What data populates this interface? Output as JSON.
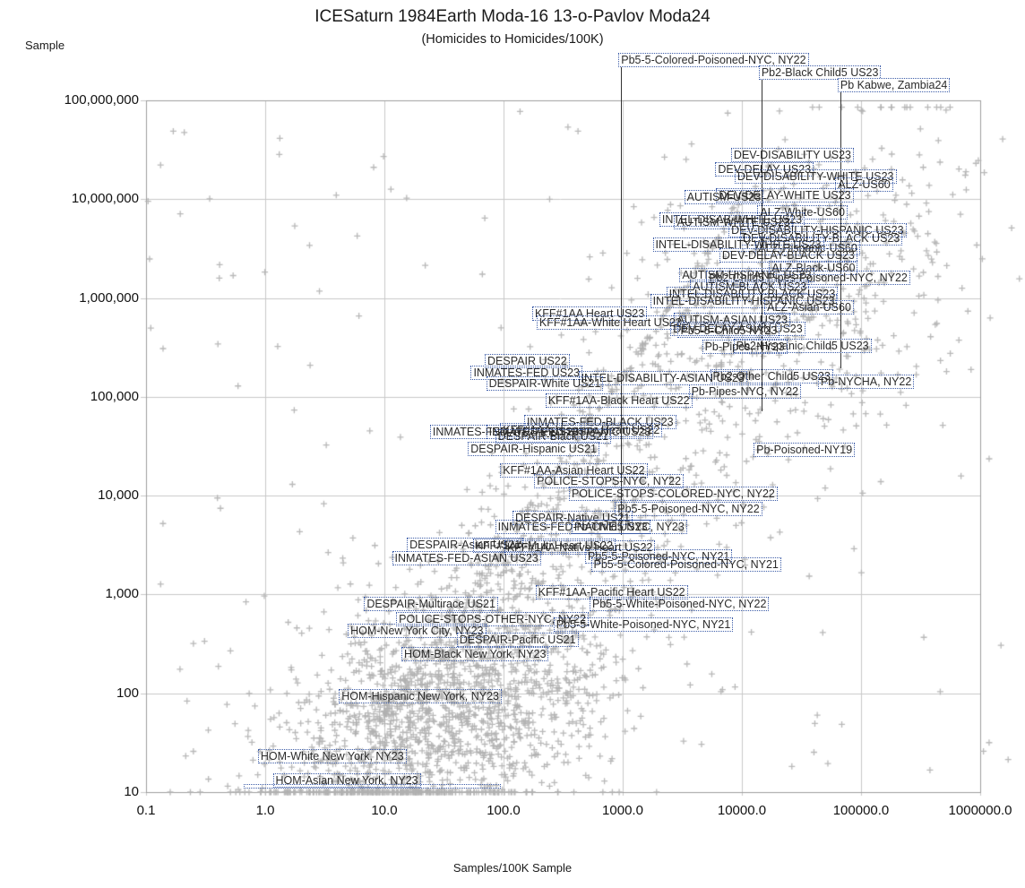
{
  "title": "ICESaturn 1984Earth Moda-16 13-o-Pavlov Moda24",
  "subtitle": "(Homicides to Homicides/100K)",
  "y_axis_label": "Sample",
  "x_axis_label": "Samples/100K Sample",
  "colors": {
    "marker": "#b0b0b0",
    "grid": "#c9c9c9",
    "axis_border": "#9e9e9e",
    "label_box_border": "#3d5da8",
    "label_text": "#2b2b2b",
    "leader_line": "#333333",
    "title_text": "#1a1a1a"
  },
  "chart_data": {
    "type": "scatter",
    "x_scale": "log",
    "y_scale": "log",
    "x_range": [
      0.1,
      1000000
    ],
    "y_range": [
      10,
      100000000
    ],
    "grid": true,
    "marker_glyph": "+",
    "x_ticks": [
      {
        "label": "0.1",
        "value": 0.1
      },
      {
        "label": "1.0",
        "value": 1
      },
      {
        "label": "10.0",
        "value": 10
      },
      {
        "label": "100.0",
        "value": 100
      },
      {
        "label": "1000.0",
        "value": 1000
      },
      {
        "label": "10000.0",
        "value": 10000
      },
      {
        "label": "100000.0",
        "value": 100000
      },
      {
        "label": "1000000.0",
        "value": 1000000
      }
    ],
    "y_ticks": [
      {
        "label": "10",
        "value": 10
      },
      {
        "label": "100",
        "value": 100
      },
      {
        "label": "1,000",
        "value": 1000
      },
      {
        "label": "10,000",
        "value": 10000
      },
      {
        "label": "100,000",
        "value": 100000
      },
      {
        "label": "1,000,000",
        "value": 1000000
      },
      {
        "label": "10,000,000",
        "value": 10000000
      },
      {
        "label": "100,000,000",
        "value": 100000000
      }
    ],
    "callouts": [
      {
        "label": "Pb5-5-Colored-Poisoned-NYC, NY22",
        "x": 970,
        "point_y": 4000,
        "row": 0
      },
      {
        "label": "Pb2-Black Child5 US23",
        "x": 14600,
        "point_y": 72000,
        "row": 1
      },
      {
        "label": "Pb Kabwe, Zambia24",
        "x": 67000,
        "point_y": 195000,
        "row": 2
      }
    ],
    "labeled_points": [
      {
        "label": "DEV-DISABILITY US23",
        "x": 8400,
        "y": 28000000
      },
      {
        "label": "DEV-DELAY US23",
        "x": 6200,
        "y": 20000000
      },
      {
        "label": "DEV-DISABILITY-WHITE US23",
        "x": 9000,
        "y": 17000000
      },
      {
        "label": "ALZ-US60",
        "x": 63000,
        "y": 14000000
      },
      {
        "label": "DEV-DELAY-WHITE US23",
        "x": 6300,
        "y": 11000000
      },
      {
        "label": "AUTISM-US23",
        "x": 3400,
        "y": 10500000
      },
      {
        "label": "ALZ-White-US60",
        "x": 14000,
        "y": 7400000
      },
      {
        "label": "INTEL-DISAB-WHITE US23",
        "x": 2100,
        "y": 6200000
      },
      {
        "label": "AUTISM-WHITE US23",
        "x": 2800,
        "y": 5900000
      },
      {
        "label": "DEV-DISABILITY-HISPANIC US23",
        "x": 8000,
        "y": 4800000
      },
      {
        "label": "DEV-DISABILITY-BLACK US23",
        "x": 10000,
        "y": 4000000
      },
      {
        "label": "INTEL-DISABILITY-WHITE US23",
        "x": 1850,
        "y": 3500000
      },
      {
        "label": "ALZ-Hispanic-US60",
        "x": 13500,
        "y": 3200000
      },
      {
        "label": "DEV-DELAY-BLACK US23",
        "x": 6700,
        "y": 2700000
      },
      {
        "label": "ALZ-Black-US60",
        "x": 17500,
        "y": 2000000
      },
      {
        "label": "AUTISM-HISPANIC US23",
        "x": 3100,
        "y": 1700000
      },
      {
        "label": "Pb2-Child5 Pipes-Poisoned-NYC, NY22",
        "x": 5200,
        "y": 1600000
      },
      {
        "label": "AUTISM-BLACK US23",
        "x": 3800,
        "y": 1300000
      },
      {
        "label": "INTEL-DISABILITY-BLACK US23",
        "x": 2400,
        "y": 1100000
      },
      {
        "label": "INTEL-DISABILITY-HISPANIC US23",
        "x": 1760,
        "y": 940000
      },
      {
        "label": "ALZ-Asian-US60",
        "x": 16000,
        "y": 800000
      },
      {
        "label": "KFF#1AA Heart US23",
        "x": 180,
        "y": 700000
      },
      {
        "label": "AUTISM-ASIAN US23",
        "x": 2800,
        "y": 600000
      },
      {
        "label": "KFF#1AA-White Heart US23",
        "x": 196,
        "y": 560000
      },
      {
        "label": "DEV-DELAY-ASIAN US23",
        "x": 2600,
        "y": 490000
      },
      {
        "label": "Pb5-5-Child5 NY23",
        "x": 3000,
        "y": 470000
      },
      {
        "label": "Pb2-Hispanic Child5 US23",
        "x": 8800,
        "y": 330000
      },
      {
        "label": "Pb-Pipes, NY23",
        "x": 4800,
        "y": 320000
      },
      {
        "label": "DESPAIR US22",
        "x": 72,
        "y": 230000
      },
      {
        "label": "INMATES-FED US23",
        "x": 55,
        "y": 176000
      },
      {
        "label": "Pb2-Other Child5 US23",
        "x": 5600,
        "y": 160000
      },
      {
        "label": "INTEL-DISABILITY-ASIAN US23",
        "x": 440,
        "y": 155000
      },
      {
        "label": "Pb-NYCHA, NY22",
        "x": 45000,
        "y": 143000
      },
      {
        "label": "DESPAIR-White US21",
        "x": 74,
        "y": 137000
      },
      {
        "label": "Pb-Pipes-NYC, NY22",
        "x": 3700,
        "y": 113000
      },
      {
        "label": "KFF#1AA-Black Heart US22",
        "x": 233,
        "y": 92000
      },
      {
        "label": "INMATES-FED-BLACK US23",
        "x": 154,
        "y": 56000
      },
      {
        "label": "KFF#1AA-Hispanic Heart US22",
        "x": 97,
        "y": 46000
      },
      {
        "label": "INMATES-FED-WHITE US23",
        "x": 25,
        "y": 44000
      },
      {
        "label": "INMATES-FED-HISPANIC US23",
        "x": 74,
        "y": 44000
      },
      {
        "label": "DESPAIR-Black US21",
        "x": 88,
        "y": 40000
      },
      {
        "label": "DESPAIR-Hispanic US21",
        "x": 52,
        "y": 30000
      },
      {
        "label": "Pb-Poisoned-NY19",
        "x": 13000,
        "y": 29000
      },
      {
        "label": "KFF#1AA-Asian Heart US22",
        "x": 97,
        "y": 18000
      },
      {
        "label": "POLICE-STOPS-NYC, NY22",
        "x": 187,
        "y": 14000
      },
      {
        "label": "POLICE-STOPS-COLORED-NYC, NY22",
        "x": 366,
        "y": 10500
      },
      {
        "label": "Pb5-5-Poisoned-NYC, NY22",
        "x": 890,
        "y": 7300
      },
      {
        "label": "DESPAIR-Native US21",
        "x": 123,
        "y": 5900
      },
      {
        "label": "INMATES-FED-NATIVE US23",
        "x": 88,
        "y": 4800
      },
      {
        "label": "Pb-Child5 NYC, NY23",
        "x": 385,
        "y": 4800
      },
      {
        "label": "DESPAIR-Asian US21",
        "x": 16,
        "y": 3200
      },
      {
        "label": "KFF#1AA-Multi Heart US22",
        "x": 57,
        "y": 3100
      },
      {
        "label": "KFF#1AA-Native Heart US22",
        "x": 105,
        "y": 3000
      },
      {
        "label": "INMATES-FED-ASIAN US23",
        "x": 12,
        "y": 2350
      },
      {
        "label": "Pb5-5-Poisoned-NYC, NY21",
        "x": 500,
        "y": 2450
      },
      {
        "label": "Pb5-5-Colored-Poisoned-NYC, NY21",
        "x": 560,
        "y": 2000
      },
      {
        "label": "KFF#1AA-Pacific Heart US22",
        "x": 192,
        "y": 1050
      },
      {
        "label": "DESPAIR-Multirace US21",
        "x": 7,
        "y": 800
      },
      {
        "label": "Pb5-5-White-Poisoned-NYC, NY22",
        "x": 545,
        "y": 800
      },
      {
        "label": "POLICE-STOPS-OTHER-NYC, NY22",
        "x": 13,
        "y": 560
      },
      {
        "label": "Pb5-5-White-Poisoned-NYC, NY21",
        "x": 272,
        "y": 500
      },
      {
        "label": "HOM-New York City, NY23",
        "x": 5.1,
        "y": 430
      },
      {
        "label": "DESPAIR-Pacific US21",
        "x": 42,
        "y": 350
      },
      {
        "label": "HOM-Black New York, NY23",
        "x": 14.4,
        "y": 250
      },
      {
        "label": "HOM-Hispanic New York, NY23",
        "x": 4.3,
        "y": 93
      },
      {
        "label": "HOM-White New York, NY23",
        "x": 0.9,
        "y": 23
      },
      {
        "label": "HOM-Asian New York, NY23",
        "x": 1.2,
        "y": 13
      }
    ],
    "empty_label_box": {
      "x1": 0.66,
      "x2": 92,
      "y": 11.6
    },
    "background_cloud": {
      "note": "approximate distribution of ~3100 unlabeled plus-markers, log10 space",
      "seed": 42,
      "components": [
        {
          "name": "dense-lower-blob",
          "n": 1500,
          "logx": {
            "dist": "normal",
            "mu": 1.45,
            "sigma": 0.7
          },
          "logy": {
            "dist": "normal",
            "mu": 1.75,
            "sigma": 0.65
          },
          "corr": 0.35
        },
        {
          "name": "broad-diagonal-band",
          "n": 850,
          "logx": {
            "dist": "normal",
            "mu": 2.7,
            "sigma": 1.15
          },
          "logy": {
            "dist": "linear",
            "slope": 1.25,
            "intercept": 0.35,
            "sigma": 0.95
          }
        },
        {
          "name": "tight-diagonal-streak",
          "n": 200,
          "logx": {
            "dist": "uniform",
            "min": 0.85,
            "max": 4.25
          },
          "logy": {
            "dist": "linear",
            "slope": 1.73,
            "intercept": 0.03,
            "sigma": 0.05
          }
        },
        {
          "name": "second-streak",
          "n": 80,
          "logx": {
            "dist": "uniform",
            "min": 1.2,
            "max": 3.8
          },
          "logy": {
            "dist": "linear",
            "slope": 1.73,
            "intercept": -0.27,
            "sigma": 0.07
          }
        },
        {
          "name": "upper-right-cluster",
          "n": 330,
          "logx": {
            "dist": "normal",
            "mu": 4.75,
            "sigma": 0.6
          },
          "logy": {
            "dist": "normal",
            "mu": 6.1,
            "sigma": 0.85
          },
          "corr": 0.5
        },
        {
          "name": "sparse-uniform",
          "n": 160,
          "logx": {
            "dist": "uniform",
            "min": -1,
            "max": 6.3
          },
          "logy": {
            "dist": "uniform",
            "min": 1.02,
            "max": 7.9
          }
        }
      ]
    }
  }
}
